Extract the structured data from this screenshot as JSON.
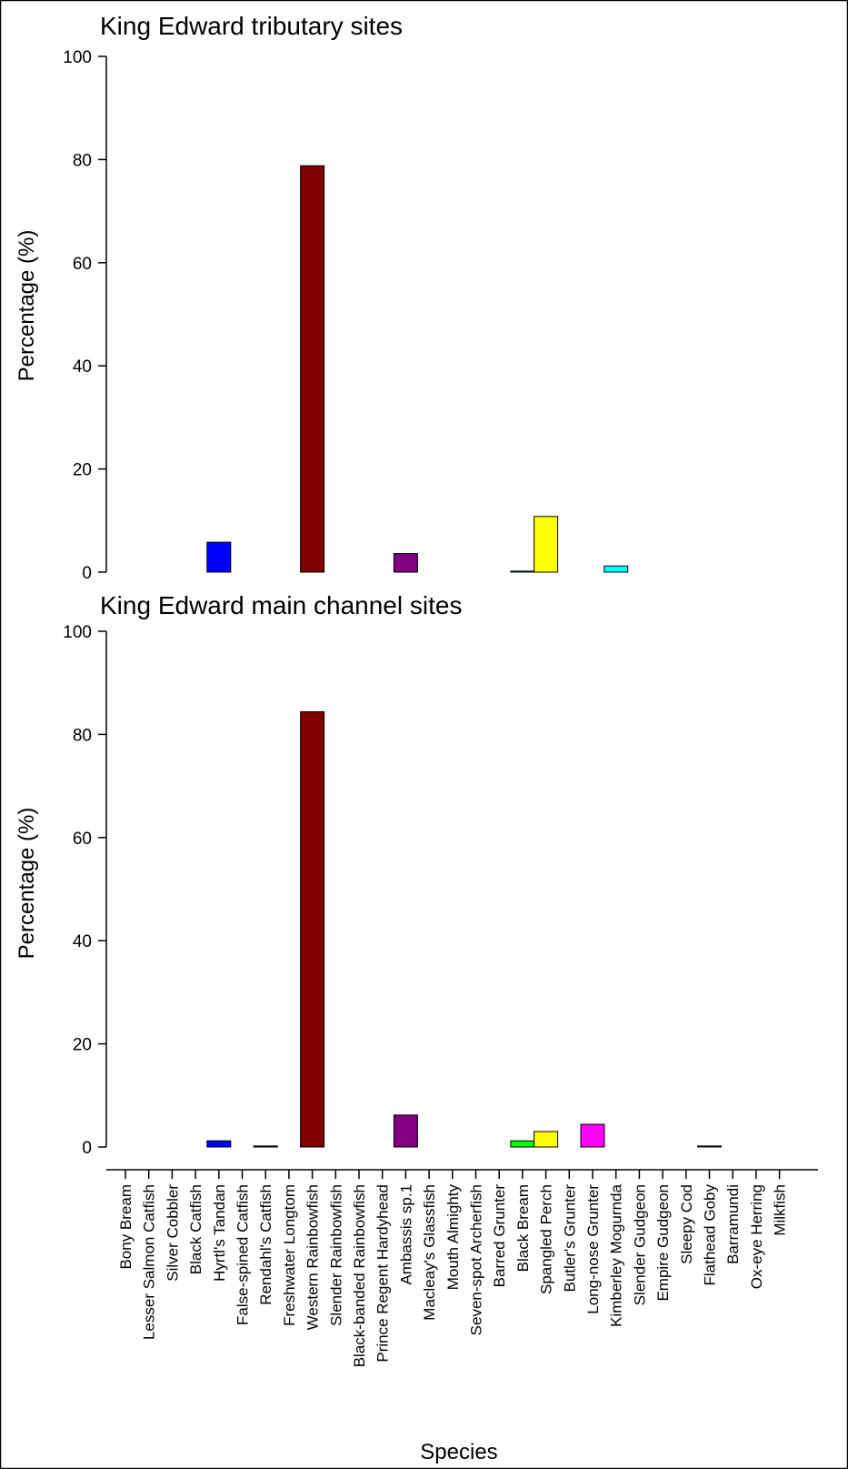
{
  "chart_data": [
    {
      "type": "bar",
      "title": "King Edward tributary sites",
      "ylabel": "Percentage (%)",
      "ylim": [
        0,
        100
      ],
      "yticks": [
        0,
        20,
        40,
        60,
        80,
        100
      ],
      "categories": [
        "Bony Bream",
        "Lesser Salmon Catfish",
        "Silver Cobbler",
        "Black Catfish",
        "Hyrtl's Tandan",
        "False-spined Catfish",
        "Rendahl's Catfish",
        "Freshwater Longtom",
        "Western Rainbowfish",
        "Slender Rainbowfish",
        "Black-banded Rainbowfish",
        "Prince Regent Hardyhead",
        "Ambassis sp.1",
        "Macleay's Glassfish",
        "Mouth Almighty",
        "Seven-spot Archerfish",
        "Barred Grunter",
        "Black Bream",
        "Spangled Perch",
        "Butler's Grunter",
        "Long-nose Grunter",
        "Kimberley Mogurnda",
        "Slender Gudgeon",
        "Empire Gudgeon",
        "Sleepy Cod",
        "Flathead Goby",
        "Barramundi",
        "Ox-eye Herring",
        "Milkfish"
      ],
      "values": [
        0,
        0,
        0,
        0,
        5.8,
        0,
        0,
        0,
        78.8,
        0,
        0,
        0,
        3.6,
        0,
        0,
        0,
        0,
        0.2,
        10.8,
        0,
        0,
        1.2,
        0,
        0,
        0,
        0,
        0,
        0,
        0
      ],
      "colors": [
        "#ffffff",
        "#ffffff",
        "#ffffff",
        "#ffffff",
        "#0000ff",
        "#ffffff",
        "#ffffff",
        "#ffffff",
        "#800000",
        "#ffffff",
        "#ffffff",
        "#ffffff",
        "#800080",
        "#ffffff",
        "#ffffff",
        "#ffffff",
        "#ffffff",
        "#00ff00",
        "#ffff00",
        "#ffffff",
        "#ff00ff",
        "#00ffff",
        "#ffffff",
        "#ffffff",
        "#ffffff",
        "#ffffff",
        "#ffffff",
        "#ffffff",
        "#ffffff"
      ]
    },
    {
      "type": "bar",
      "title": "King Edward main channel sites",
      "xlabel": "Species",
      "ylabel": "Percentage (%)",
      "ylim": [
        0,
        100
      ],
      "yticks": [
        0,
        20,
        40,
        60,
        80,
        100
      ],
      "categories": [
        "Bony Bream",
        "Lesser Salmon Catfish",
        "Silver Cobbler",
        "Black Catfish",
        "Hyrtl's Tandan",
        "False-spined Catfish",
        "Rendahl's Catfish",
        "Freshwater Longtom",
        "Western Rainbowfish",
        "Slender Rainbowfish",
        "Black-banded Rainbowfish",
        "Prince Regent Hardyhead",
        "Ambassis sp.1",
        "Macleay's Glassfish",
        "Mouth Almighty",
        "Seven-spot Archerfish",
        "Barred Grunter",
        "Black Bream",
        "Spangled Perch",
        "Butler's Grunter",
        "Long-nose Grunter",
        "Kimberley Mogurnda",
        "Slender Gudgeon",
        "Empire Gudgeon",
        "Sleepy Cod",
        "Flathead Goby",
        "Barramundi",
        "Ox-eye Herring",
        "Milkfish"
      ],
      "values": [
        0,
        0,
        0,
        0,
        1.2,
        0,
        0.2,
        0,
        84.4,
        0,
        0,
        0,
        6.2,
        0,
        0,
        0,
        0,
        1.2,
        3.0,
        0,
        4.4,
        0,
        0,
        0,
        0,
        0.2,
        0,
        0,
        0
      ],
      "colors": [
        "#ffffff",
        "#ffffff",
        "#ffffff",
        "#ffffff",
        "#0000ff",
        "#ffffff",
        "#800000",
        "#ffffff",
        "#800000",
        "#ffffff",
        "#ffffff",
        "#ffffff",
        "#800080",
        "#ffffff",
        "#ffffff",
        "#ffffff",
        "#ffffff",
        "#00ff00",
        "#ffff00",
        "#ffffff",
        "#ff00ff",
        "#ffffff",
        "#ffffff",
        "#ffffff",
        "#ffffff",
        "#ff00ff",
        "#ffffff",
        "#ffffff",
        "#ffffff"
      ]
    }
  ]
}
